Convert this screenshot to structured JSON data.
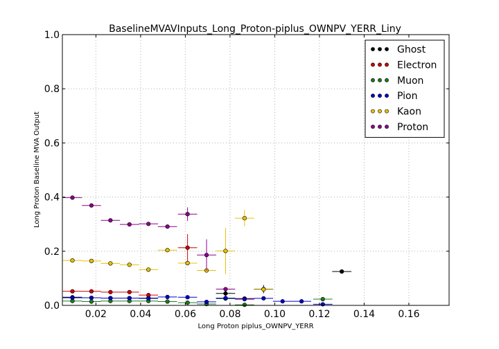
{
  "chart_data": {
    "type": "scatter",
    "title": "BaselineMVAVInputs_Long_Proton-piplus_OWNPV_YERR_Liny",
    "xlabel": "Long Proton piplus_OWNPV_YERR",
    "ylabel": "Long Proton Baseline MVA Output",
    "xlim": [
      0.005,
      0.178
    ],
    "ylim": [
      0.0,
      1.0
    ],
    "x_ticks": [
      "0.02",
      "0.04",
      "0.06",
      "0.08",
      "0.10",
      "0.12",
      "0.14",
      "0.16"
    ],
    "y_ticks": [
      "0.0",
      "0.2",
      "0.4",
      "0.6",
      "0.8",
      "1.0"
    ],
    "grid": true,
    "legend_position": "top-right",
    "bin_half_width": 0.0043,
    "series": [
      {
        "name": "Ghost",
        "color": "#000000",
        "points": [
          {
            "x": 0.0095,
            "y": 0.03,
            "yerr": 0.0
          },
          {
            "x": 0.018,
            "y": 0.028,
            "yerr": 0.0
          },
          {
            "x": 0.0265,
            "y": 0.027,
            "yerr": 0.0
          },
          {
            "x": 0.035,
            "y": 0.027,
            "yerr": 0.0
          },
          {
            "x": 0.0435,
            "y": 0.027,
            "yerr": 0.0
          },
          {
            "x": 0.078,
            "y": 0.044,
            "yerr": 0.01
          },
          {
            "x": 0.0865,
            "y": 0.025,
            "yerr": 0.0
          },
          {
            "x": 0.095,
            "y": 0.06,
            "yerr": 0.015
          },
          {
            "x": 0.13,
            "y": 0.125,
            "yerr": 0.0
          }
        ]
      },
      {
        "name": "Electron",
        "color": "#cc0000",
        "points": [
          {
            "x": 0.0095,
            "y": 0.052,
            "yerr": 0.0
          },
          {
            "x": 0.018,
            "y": 0.052,
            "yerr": 0.0
          },
          {
            "x": 0.0265,
            "y": 0.049,
            "yerr": 0.0
          },
          {
            "x": 0.035,
            "y": 0.049,
            "yerr": 0.0
          },
          {
            "x": 0.0435,
            "y": 0.038,
            "yerr": 0.0
          },
          {
            "x": 0.061,
            "y": 0.213,
            "yerr": 0.05
          },
          {
            "x": 0.0865,
            "y": 0.025,
            "yerr": 0.0
          }
        ]
      },
      {
        "name": "Muon",
        "color": "#1e7a1e",
        "points": [
          {
            "x": 0.0095,
            "y": 0.016,
            "yerr": 0.0
          },
          {
            "x": 0.018,
            "y": 0.014,
            "yerr": 0.0
          },
          {
            "x": 0.0265,
            "y": 0.016,
            "yerr": 0.0
          },
          {
            "x": 0.035,
            "y": 0.016,
            "yerr": 0.0
          },
          {
            "x": 0.0435,
            "y": 0.016,
            "yerr": 0.0
          },
          {
            "x": 0.052,
            "y": 0.014,
            "yerr": 0.0
          },
          {
            "x": 0.061,
            "y": 0.01,
            "yerr": 0.0
          },
          {
            "x": 0.0695,
            "y": 0.005,
            "yerr": 0.0
          },
          {
            "x": 0.078,
            "y": 0.025,
            "yerr": 0.0
          },
          {
            "x": 0.0865,
            "y": 0.002,
            "yerr": 0.0
          },
          {
            "x": 0.1215,
            "y": 0.023,
            "yerr": 0.0
          }
        ]
      },
      {
        "name": "Pion",
        "color": "#0000cc",
        "points": [
          {
            "x": 0.0095,
            "y": 0.028,
            "yerr": 0.0
          },
          {
            "x": 0.018,
            "y": 0.028,
            "yerr": 0.0
          },
          {
            "x": 0.0265,
            "y": 0.027,
            "yerr": 0.0
          },
          {
            "x": 0.035,
            "y": 0.027,
            "yerr": 0.0
          },
          {
            "x": 0.0435,
            "y": 0.026,
            "yerr": 0.0
          },
          {
            "x": 0.052,
            "y": 0.031,
            "yerr": 0.0
          },
          {
            "x": 0.061,
            "y": 0.03,
            "yerr": 0.0
          },
          {
            "x": 0.0695,
            "y": 0.013,
            "yerr": 0.0
          },
          {
            "x": 0.078,
            "y": 0.027,
            "yerr": 0.0
          },
          {
            "x": 0.0865,
            "y": 0.023,
            "yerr": 0.0
          },
          {
            "x": 0.095,
            "y": 0.026,
            "yerr": 0.0
          },
          {
            "x": 0.1035,
            "y": 0.015,
            "yerr": 0.0
          },
          {
            "x": 0.112,
            "y": 0.015,
            "yerr": 0.0
          },
          {
            "x": 0.1215,
            "y": 0.004,
            "yerr": 0.0
          }
        ]
      },
      {
        "name": "Kaon",
        "color": "#e6c200",
        "points": [
          {
            "x": 0.0095,
            "y": 0.166,
            "yerr": 0.0
          },
          {
            "x": 0.018,
            "y": 0.164,
            "yerr": 0.0
          },
          {
            "x": 0.0265,
            "y": 0.155,
            "yerr": 0.0
          },
          {
            "x": 0.035,
            "y": 0.15,
            "yerr": 0.0
          },
          {
            "x": 0.0435,
            "y": 0.132,
            "yerr": 0.0
          },
          {
            "x": 0.052,
            "y": 0.204,
            "yerr": 0.0
          },
          {
            "x": 0.061,
            "y": 0.156,
            "yerr": 0.0
          },
          {
            "x": 0.0695,
            "y": 0.129,
            "yerr": 0.0
          },
          {
            "x": 0.078,
            "y": 0.201,
            "yerr": 0.085
          },
          {
            "x": 0.0865,
            "y": 0.322,
            "yerr": 0.03
          },
          {
            "x": 0.095,
            "y": 0.059,
            "yerr": 0.0
          }
        ]
      },
      {
        "name": "Proton",
        "color": "#8b008b",
        "points": [
          {
            "x": 0.0095,
            "y": 0.398,
            "yerr": 0.0
          },
          {
            "x": 0.018,
            "y": 0.369,
            "yerr": 0.0
          },
          {
            "x": 0.0265,
            "y": 0.314,
            "yerr": 0.0
          },
          {
            "x": 0.035,
            "y": 0.299,
            "yerr": 0.0
          },
          {
            "x": 0.0435,
            "y": 0.301,
            "yerr": 0.0
          },
          {
            "x": 0.052,
            "y": 0.291,
            "yerr": 0.0
          },
          {
            "x": 0.061,
            "y": 0.337,
            "yerr": 0.025
          },
          {
            "x": 0.0695,
            "y": 0.186,
            "yerr": 0.058
          },
          {
            "x": 0.078,
            "y": 0.06,
            "yerr": 0.0
          }
        ]
      }
    ]
  }
}
